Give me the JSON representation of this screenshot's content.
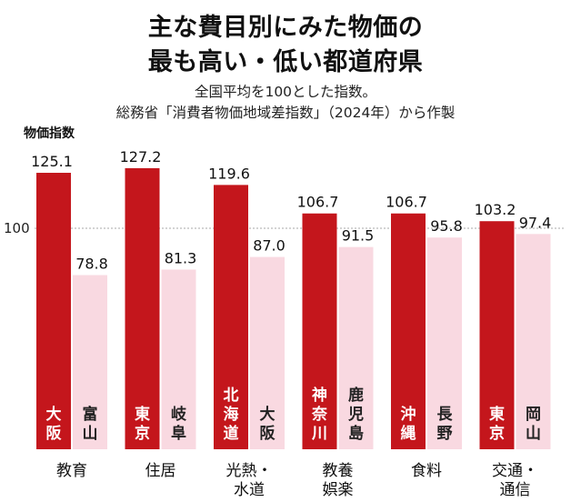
{
  "header": {
    "title_line1": "主な費目別にみた物価の",
    "title_line2": "最も高い・低い都道府県",
    "subtitle_line1": "全国平均を100とした指数。",
    "subtitle_line2": "総務省「消費者物価地域差指数」（2024年）から作製"
  },
  "chart_data": {
    "type": "bar",
    "ylabel": "物価指数",
    "reference_value": 100,
    "reference_label": "100",
    "colors": {
      "high": "#c4161c",
      "low": "#f9d9e1",
      "high_text": "#ffffff",
      "low_text": "#222222",
      "reference": "#aaaaaa"
    },
    "categories": [
      {
        "label_lines": [
          "教育"
        ],
        "high": {
          "region": "大阪",
          "value": 125.1,
          "value_label": "125.1"
        },
        "low": {
          "region": "富山",
          "value": 78.8,
          "value_label": "78.8"
        }
      },
      {
        "label_lines": [
          "住居"
        ],
        "high": {
          "region": "東京",
          "value": 127.2,
          "value_label": "127.2"
        },
        "low": {
          "region": "岐阜",
          "value": 81.3,
          "value_label": "81.3"
        }
      },
      {
        "label_lines": [
          "光熱・",
          "水道"
        ],
        "high": {
          "region": "北海道",
          "value": 119.6,
          "value_label": "119.6"
        },
        "low": {
          "region": "大阪",
          "value": 87.0,
          "value_label": "87.0"
        }
      },
      {
        "label_lines": [
          "教養",
          "娯楽"
        ],
        "high": {
          "region": "神奈川",
          "value": 106.7,
          "value_label": "106.7"
        },
        "low": {
          "region": "鹿児島",
          "value": 91.5,
          "value_label": "91.5"
        }
      },
      {
        "label_lines": [
          "食料"
        ],
        "high": {
          "region": "沖縄",
          "value": 106.7,
          "value_label": "106.7"
        },
        "low": {
          "region": "長野",
          "value": 95.8,
          "value_label": "95.8"
        }
      },
      {
        "label_lines": [
          "交通・",
          "通信"
        ],
        "high": {
          "region": "東京",
          "value": 103.2,
          "value_label": "103.2"
        },
        "low": {
          "region": "岡山",
          "value": 97.4,
          "value_label": "97.4"
        }
      }
    ]
  }
}
